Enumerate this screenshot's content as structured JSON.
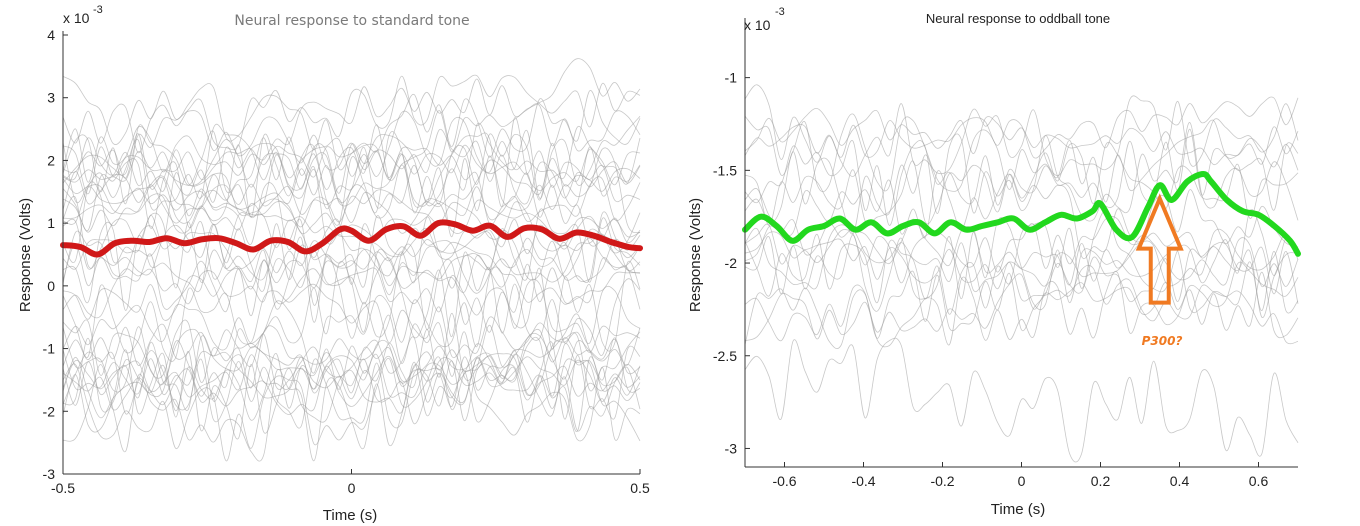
{
  "chart_data": [
    {
      "type": "line",
      "title": "Neural response to standard tone",
      "xlabel": "Time (s)",
      "ylabel": "Response (Volts)",
      "y_exponent_label": "x 10",
      "y_exponent_power": "-3",
      "xlim": [
        -0.5,
        0.5
      ],
      "ylim": [
        -3,
        4
      ],
      "x_ticks": [
        "-0.5",
        "0",
        "0.5"
      ],
      "x_tick_values": [
        -0.5,
        0,
        0.5
      ],
      "y_ticks": [
        "-3",
        "-2",
        "-1",
        "0",
        "1",
        "2",
        "3",
        "4"
      ],
      "y_tick_values": [
        -3,
        -2,
        -1,
        0,
        1,
        2,
        3,
        4
      ],
      "trial_color": "#9a9a9a",
      "trial_count": 40,
      "mean_color": "#d01818",
      "mean_series": {
        "x": [
          -0.5,
          -0.47,
          -0.44,
          -0.41,
          -0.38,
          -0.35,
          -0.32,
          -0.29,
          -0.26,
          -0.23,
          -0.2,
          -0.17,
          -0.14,
          -0.11,
          -0.08,
          -0.05,
          -0.02,
          0.0,
          0.03,
          0.06,
          0.09,
          0.12,
          0.15,
          0.18,
          0.21,
          0.24,
          0.27,
          0.3,
          0.33,
          0.36,
          0.39,
          0.42,
          0.45,
          0.48,
          0.5
        ],
        "y": [
          0.65,
          0.62,
          0.5,
          0.68,
          0.72,
          0.7,
          0.76,
          0.68,
          0.74,
          0.76,
          0.68,
          0.58,
          0.72,
          0.7,
          0.55,
          0.68,
          0.9,
          0.88,
          0.72,
          0.9,
          0.95,
          0.8,
          1.0,
          0.98,
          0.88,
          0.96,
          0.78,
          0.92,
          0.9,
          0.75,
          0.85,
          0.8,
          0.7,
          0.62,
          0.6
        ]
      }
    },
    {
      "type": "line",
      "title": "Neural response to oddball tone",
      "xlabel": "Time (s)",
      "ylabel": "Response (Volts)",
      "y_exponent_label": "x 10",
      "y_exponent_power": "-3",
      "xlim": [
        -0.7,
        0.7
      ],
      "ylim": [
        -3.1,
        -0.7
      ],
      "x_ticks": [
        "-0.6",
        "-0.4",
        "-0.2",
        "0",
        "0.2",
        "0.4",
        "0.6"
      ],
      "x_tick_values": [
        -0.6,
        -0.4,
        -0.2,
        0,
        0.2,
        0.4,
        0.6
      ],
      "y_ticks": [
        "-3",
        "-2.5",
        "-2",
        "-1.5",
        "-1"
      ],
      "y_tick_values": [
        -3,
        -2.5,
        -2,
        -1.5,
        -1
      ],
      "trial_color": "#9a9a9a",
      "trial_count": 18,
      "mean_color": "#22d81e",
      "mean_series": {
        "x": [
          -0.7,
          -0.66,
          -0.62,
          -0.58,
          -0.54,
          -0.5,
          -0.46,
          -0.42,
          -0.38,
          -0.34,
          -0.3,
          -0.26,
          -0.22,
          -0.18,
          -0.14,
          -0.1,
          -0.06,
          -0.02,
          0.02,
          0.06,
          0.1,
          0.14,
          0.18,
          0.2,
          0.24,
          0.28,
          0.32,
          0.35,
          0.38,
          0.42,
          0.46,
          0.48,
          0.52,
          0.56,
          0.6,
          0.64,
          0.68,
          0.7
        ],
        "y": [
          -1.82,
          -1.75,
          -1.8,
          -1.88,
          -1.82,
          -1.8,
          -1.76,
          -1.82,
          -1.78,
          -1.84,
          -1.8,
          -1.78,
          -1.84,
          -1.78,
          -1.82,
          -1.8,
          -1.78,
          -1.76,
          -1.82,
          -1.78,
          -1.74,
          -1.76,
          -1.72,
          -1.68,
          -1.82,
          -1.86,
          -1.7,
          -1.58,
          -1.66,
          -1.56,
          -1.52,
          -1.56,
          -1.66,
          -1.72,
          -1.74,
          -1.8,
          -1.88,
          -1.95
        ]
      },
      "annotation": {
        "text": "P300?",
        "arrow_color": "#f07a22",
        "points_to_x": 0.35,
        "points_to_y": -1.62
      }
    }
  ]
}
